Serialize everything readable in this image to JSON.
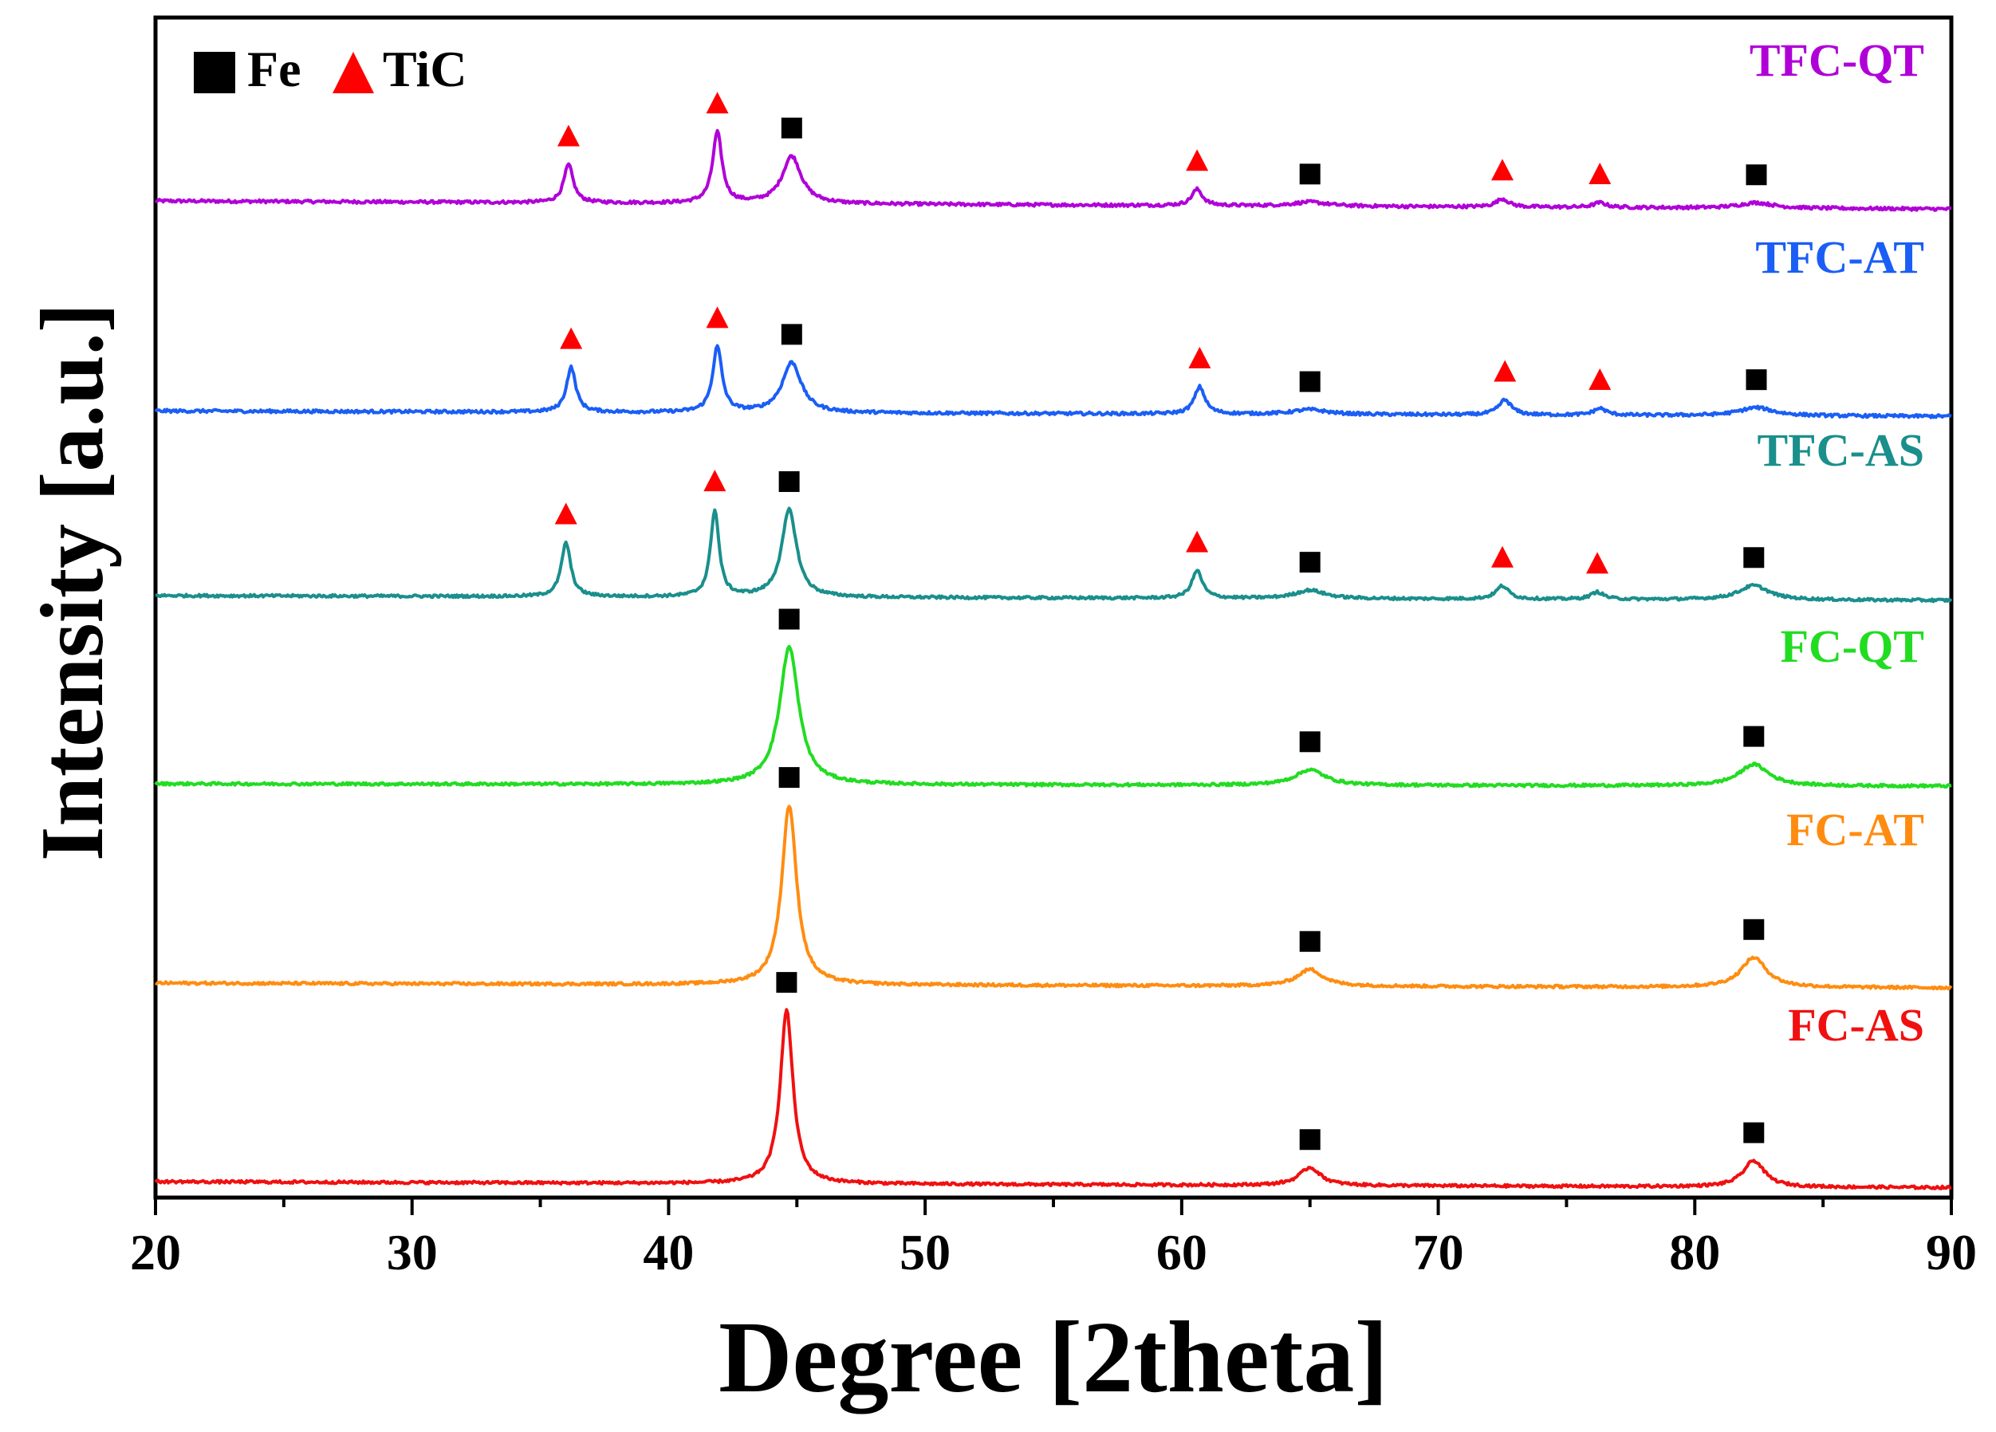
{
  "chart_data": {
    "type": "line",
    "title": "",
    "xlabel": "Degree [2theta]",
    "ylabel": "Intensity [a.u.]",
    "xlim": [
      20,
      90
    ],
    "xticks": [
      20,
      30,
      40,
      50,
      60,
      70,
      80,
      90
    ],
    "tick_labels": [
      "20",
      "30",
      "40",
      "50",
      "60",
      "70",
      "80",
      "90"
    ],
    "grid": false,
    "legend_position": "top-left",
    "legend": [
      {
        "label": "Fe",
        "marker": "square",
        "color": "#000000"
      },
      {
        "label": "TiC",
        "marker": "triangle",
        "color": "#ff0000"
      }
    ],
    "y_units": "arbitrary, each pattern offset vertically",
    "series": [
      {
        "name": "TFC-QT",
        "color": "#b000d8",
        "baseline_start": 0.8,
        "baseline_end": 0.74,
        "peaks": [
          {
            "x": 36.1,
            "h": 0.28,
            "w": 0.22,
            "phase": "TiC"
          },
          {
            "x": 41.9,
            "h": 0.52,
            "w": 0.22,
            "phase": "TiC"
          },
          {
            "x": 44.8,
            "h": 0.35,
            "w": 0.45,
            "phase": "Fe"
          },
          {
            "x": 60.6,
            "h": 0.12,
            "w": 0.25,
            "phase": "TiC"
          },
          {
            "x": 65.0,
            "h": 0.03,
            "w": 0.8,
            "phase": "Fe"
          },
          {
            "x": 72.5,
            "h": 0.06,
            "w": 0.3,
            "phase": "TiC"
          },
          {
            "x": 76.3,
            "h": 0.035,
            "w": 0.3,
            "phase": "TiC"
          },
          {
            "x": 82.4,
            "h": 0.04,
            "w": 0.8,
            "phase": "Fe"
          }
        ]
      },
      {
        "name": "TFC-AT",
        "color": "#1a5ef5",
        "baseline_start": 0.78,
        "baseline_end": 0.74,
        "peaks": [
          {
            "x": 36.2,
            "h": 0.33,
            "w": 0.22,
            "phase": "TiC"
          },
          {
            "x": 41.9,
            "h": 0.48,
            "w": 0.22,
            "phase": "TiC"
          },
          {
            "x": 44.8,
            "h": 0.37,
            "w": 0.45,
            "phase": "Fe"
          },
          {
            "x": 60.7,
            "h": 0.2,
            "w": 0.25,
            "phase": "TiC"
          },
          {
            "x": 65.0,
            "h": 0.035,
            "w": 0.8,
            "phase": "Fe"
          },
          {
            "x": 72.6,
            "h": 0.11,
            "w": 0.3,
            "phase": "TiC"
          },
          {
            "x": 76.3,
            "h": 0.05,
            "w": 0.3,
            "phase": "TiC"
          },
          {
            "x": 82.4,
            "h": 0.06,
            "w": 0.8,
            "phase": "Fe"
          }
        ]
      },
      {
        "name": "TFC-AS",
        "color": "#1a8f8c",
        "baseline_start": 0.8,
        "baseline_end": 0.76,
        "peaks": [
          {
            "x": 36.0,
            "h": 0.45,
            "w": 0.22,
            "phase": "TiC"
          },
          {
            "x": 41.8,
            "h": 0.72,
            "w": 0.2,
            "phase": "TiC"
          },
          {
            "x": 44.7,
            "h": 0.73,
            "w": 0.35,
            "phase": "Fe"
          },
          {
            "x": 60.6,
            "h": 0.23,
            "w": 0.25,
            "phase": "TiC"
          },
          {
            "x": 65.0,
            "h": 0.07,
            "w": 0.7,
            "phase": "Fe"
          },
          {
            "x": 72.5,
            "h": 0.11,
            "w": 0.3,
            "phase": "TiC"
          },
          {
            "x": 76.2,
            "h": 0.06,
            "w": 0.3,
            "phase": "TiC"
          },
          {
            "x": 82.3,
            "h": 0.12,
            "w": 0.7,
            "phase": "Fe"
          }
        ]
      },
      {
        "name": "FC-QT",
        "color": "#22dc22",
        "baseline_start": 0.8,
        "baseline_end": 0.78,
        "peaks": [
          {
            "x": 44.7,
            "h": 1.15,
            "w": 0.45,
            "phase": "Fe"
          },
          {
            "x": 65.0,
            "h": 0.13,
            "w": 0.7,
            "phase": "Fe"
          },
          {
            "x": 82.3,
            "h": 0.18,
            "w": 0.7,
            "phase": "Fe"
          }
        ]
      },
      {
        "name": "FC-AT",
        "color": "#ff8c10",
        "baseline_start": 0.8,
        "baseline_end": 0.76,
        "peaks": [
          {
            "x": 44.7,
            "h": 1.5,
            "w": 0.35,
            "phase": "Fe"
          },
          {
            "x": 65.0,
            "h": 0.14,
            "w": 0.6,
            "phase": "Fe"
          },
          {
            "x": 82.3,
            "h": 0.25,
            "w": 0.6,
            "phase": "Fe"
          }
        ]
      },
      {
        "name": "FC-AS",
        "color": "#f01010",
        "baseline_start": 0.8,
        "baseline_end": 0.75,
        "peaks": [
          {
            "x": 44.6,
            "h": 1.45,
            "w": 0.3,
            "phase": "Fe"
          },
          {
            "x": 65.0,
            "h": 0.15,
            "w": 0.5,
            "phase": "Fe"
          },
          {
            "x": 82.3,
            "h": 0.22,
            "w": 0.5,
            "phase": "Fe"
          }
        ]
      }
    ]
  }
}
